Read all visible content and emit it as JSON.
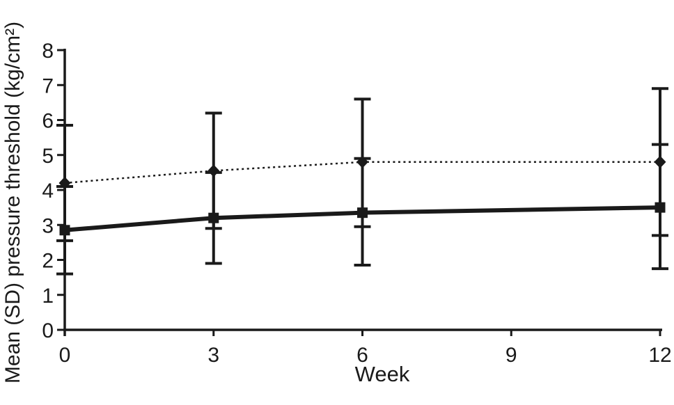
{
  "figure": {
    "background": "#ffffff",
    "ink_color": "#1a1a1a"
  },
  "chart_data": {
    "type": "line",
    "title": "",
    "xlabel": "Week",
    "ylabel": "Mean (SD) pressure threshold (kg/cm²)",
    "x": [
      0,
      3,
      6,
      12
    ],
    "xticks": [
      0,
      3,
      6,
      9,
      12
    ],
    "yticks": [
      0,
      1,
      2,
      3,
      4,
      5,
      6,
      7,
      8
    ],
    "xlim": [
      0,
      12
    ],
    "ylim": [
      0,
      8
    ],
    "grid": false,
    "legend": "none",
    "error_bars": true,
    "series": [
      {
        "name": "dotted-diamond",
        "marker": "diamond",
        "line_style": "dotted",
        "values": [
          4.2,
          4.55,
          4.8,
          4.8
        ],
        "err_low": [
          2.55,
          2.9,
          2.95,
          2.7
        ],
        "err_high": [
          5.85,
          6.2,
          6.6,
          6.9
        ]
      },
      {
        "name": "solid-square",
        "marker": "square",
        "line_style": "solid",
        "values": [
          2.85,
          3.2,
          3.35,
          3.5
        ],
        "err_low": [
          1.6,
          1.9,
          1.85,
          1.75
        ],
        "err_high": [
          4.1,
          4.5,
          4.9,
          5.3
        ]
      }
    ]
  }
}
